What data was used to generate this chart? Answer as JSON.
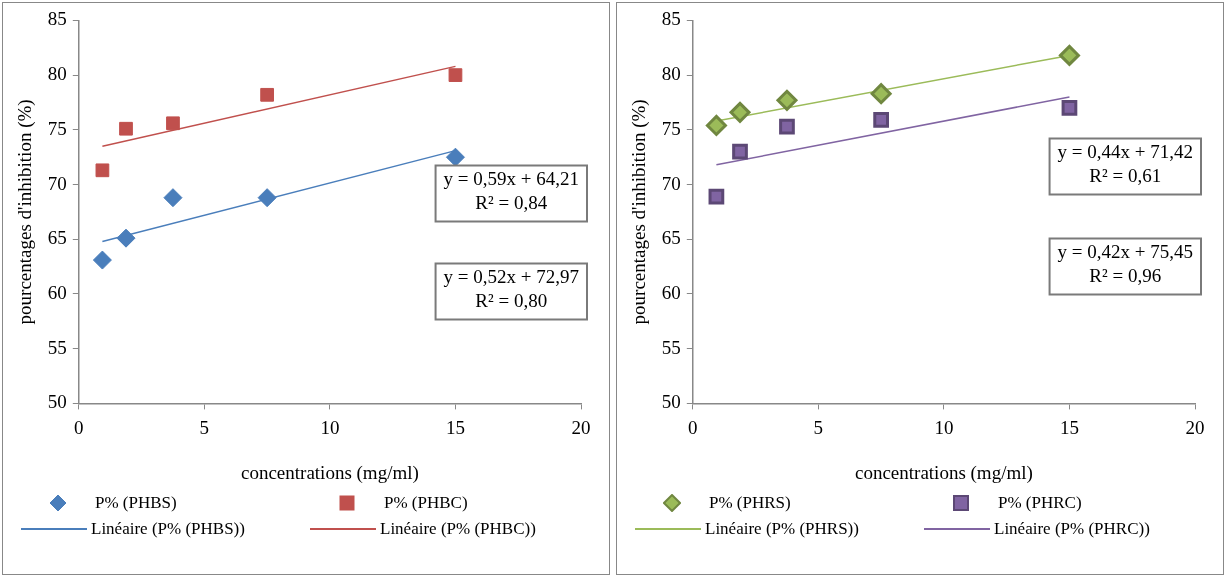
{
  "chart_data": [
    {
      "type": "scatter",
      "xlabel": "concentrations (mg/ml)",
      "ylabel": "pourcentages d'inhibition (%)",
      "xlim": [
        0,
        20
      ],
      "xticks": [
        0,
        5,
        10,
        15,
        20
      ],
      "ylim": [
        50,
        85
      ],
      "yticks": [
        50,
        55,
        60,
        65,
        70,
        75,
        80,
        85
      ],
      "grid": false,
      "legend": "bottom",
      "series": [
        {
          "name": "P% (PHBS)",
          "type": "scatter",
          "marker": "diamond",
          "color": "#4a7ebb",
          "x": [
            0.94,
            1.88,
            3.75,
            7.5,
            15
          ],
          "values": [
            63.1,
            65.1,
            68.8,
            68.8,
            72.5
          ]
        },
        {
          "name": "P% (PHBC)",
          "type": "scatter",
          "marker": "square",
          "color": "#c0504d",
          "x": [
            0.94,
            1.88,
            3.75,
            7.5,
            15
          ],
          "values": [
            71.3,
            75.1,
            75.6,
            78.2,
            80.0
          ]
        },
        {
          "name": "Linéaire (P% (PHBS))",
          "type": "line",
          "marker": "none",
          "color": "#4a7ebb",
          "x": [
            0.94,
            15
          ],
          "values": [
            64.8,
            73.1
          ]
        },
        {
          "name": "Linéaire (P% (PHBC))",
          "type": "line",
          "marker": "none",
          "color": "#c0504d",
          "x": [
            0.94,
            15
          ],
          "values": [
            73.5,
            80.8
          ]
        }
      ],
      "annotations": [
        "y = 0,59x + 64,21\nR² = 0,84",
        "y = 0,52x + 72,97\nR² = 0,80"
      ]
    },
    {
      "type": "scatter",
      "xlabel": "concentrations (mg/ml)",
      "ylabel": "pourcentages d'inhibition (%)",
      "xlim": [
        0,
        20
      ],
      "xticks": [
        0,
        5,
        10,
        15,
        20
      ],
      "ylim": [
        50,
        85
      ],
      "yticks": [
        50,
        55,
        60,
        65,
        70,
        75,
        80,
        85
      ],
      "grid": false,
      "legend": "bottom",
      "series": [
        {
          "name": "P% (PHRS)",
          "type": "scatter",
          "marker": "diamond",
          "color": "#9bbb59",
          "x": [
            0.94,
            1.88,
            3.75,
            7.5,
            15
          ],
          "values": [
            75.4,
            76.6,
            77.7,
            78.3,
            81.8
          ]
        },
        {
          "name": "P% (PHRC)",
          "type": "scatter",
          "marker": "square",
          "color": "#8064a2",
          "x": [
            0.94,
            1.88,
            3.75,
            7.5,
            15
          ],
          "values": [
            68.9,
            73.0,
            75.3,
            75.9,
            77.0
          ]
        },
        {
          "name": "Linéaire (P% (PHRS))",
          "type": "line",
          "marker": "none",
          "color": "#9bbb59",
          "x": [
            0.94,
            15
          ],
          "values": [
            75.8,
            81.8
          ]
        },
        {
          "name": "Linéaire (P% (PHRC))",
          "type": "line",
          "marker": "none",
          "color": "#8064a2",
          "x": [
            0.94,
            15
          ],
          "values": [
            71.8,
            78.0
          ]
        }
      ],
      "annotations": [
        "y = 0,44x + 71,42\nR² = 0,61",
        "y = 0,42x + 75,45\nR² = 0,96"
      ]
    }
  ]
}
